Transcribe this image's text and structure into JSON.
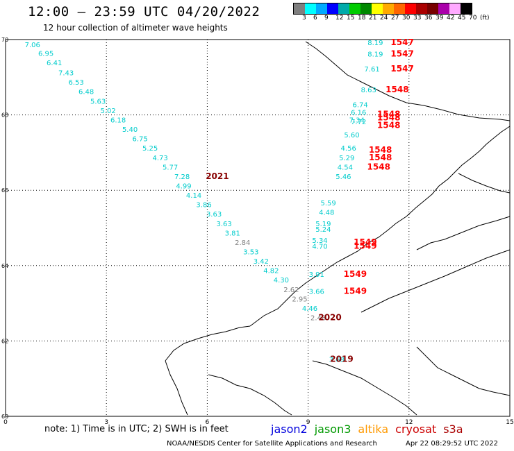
{
  "title": "12:00 — 23:59 UTC 04/20/2022",
  "subtitle": "12 hour collection of altimeter wave heights",
  "legend": {
    "colors": [
      "#7f7f7f",
      "#00ffff",
      "#00aaff",
      "#0000ff",
      "#00aaaa",
      "#00cc00",
      "#008800",
      "#ffff00",
      "#ffaa00",
      "#ff6600",
      "#ff0000",
      "#aa0000",
      "#770000",
      "#aa00aa",
      "#ffaaff",
      "#000000"
    ],
    "labels": [
      "3",
      "6",
      "9",
      "12",
      "15",
      "18",
      "21",
      "24",
      "27",
      "30",
      "33",
      "36",
      "39",
      "42",
      "45",
      "70",
      "(ft)"
    ]
  },
  "axes": {
    "lon_ticks": [
      "0",
      "3",
      "6",
      "9",
      "12",
      "15"
    ],
    "lat_ticks": [
      "70",
      "68",
      "66",
      "64",
      "62",
      "60"
    ]
  },
  "chart_data": {
    "type": "scatter",
    "x_range": [
      0,
      15
    ],
    "y_range": [
      60,
      70
    ],
    "grid": true,
    "points": [
      {
        "lon": 0.8,
        "lat": 69.8,
        "v": "7.06",
        "c": "#00cccc"
      },
      {
        "lon": 1.2,
        "lat": 69.57,
        "v": "6.95",
        "c": "#00cccc"
      },
      {
        "lon": 1.45,
        "lat": 69.32,
        "v": "6.41",
        "c": "#00cccc"
      },
      {
        "lon": 1.8,
        "lat": 69.05,
        "v": "7.43",
        "c": "#00cccc"
      },
      {
        "lon": 2.1,
        "lat": 68.8,
        "v": "6.53",
        "c": "#00cccc"
      },
      {
        "lon": 2.4,
        "lat": 68.55,
        "v": "6.48",
        "c": "#00cccc"
      },
      {
        "lon": 2.75,
        "lat": 68.3,
        "v": "5.63",
        "c": "#00cccc"
      },
      {
        "lon": 3.05,
        "lat": 68.05,
        "v": "5.02",
        "c": "#00cccc"
      },
      {
        "lon": 3.35,
        "lat": 67.8,
        "v": "6.18",
        "c": "#00cccc"
      },
      {
        "lon": 3.7,
        "lat": 67.55,
        "v": "5.40",
        "c": "#00cccc"
      },
      {
        "lon": 4.0,
        "lat": 67.3,
        "v": "6.75",
        "c": "#00cccc"
      },
      {
        "lon": 4.3,
        "lat": 67.05,
        "v": "5.25",
        "c": "#00cccc"
      },
      {
        "lon": 4.6,
        "lat": 66.8,
        "v": "4.73",
        "c": "#00cccc"
      },
      {
        "lon": 4.9,
        "lat": 66.55,
        "v": "5.77",
        "c": "#00cccc"
      },
      {
        "lon": 5.25,
        "lat": 66.3,
        "v": "7.28",
        "c": "#00cccc"
      },
      {
        "lon": 5.3,
        "lat": 66.05,
        "v": "4.99",
        "c": "#00cccc"
      },
      {
        "lon": 5.6,
        "lat": 65.8,
        "v": "4.14",
        "c": "#00cccc"
      },
      {
        "lon": 5.9,
        "lat": 65.55,
        "v": "3.86",
        "c": "#00cccc"
      },
      {
        "lon": 6.2,
        "lat": 65.3,
        "v": "3.63",
        "c": "#00cccc"
      },
      {
        "lon": 6.5,
        "lat": 65.05,
        "v": "3.63",
        "c": "#00cccc"
      },
      {
        "lon": 6.75,
        "lat": 64.8,
        "v": "3.81",
        "c": "#00cccc"
      },
      {
        "lon": 7.05,
        "lat": 64.55,
        "v": "2.84",
        "c": "#808080"
      },
      {
        "lon": 7.3,
        "lat": 64.3,
        "v": "3.53",
        "c": "#00cccc"
      },
      {
        "lon": 7.6,
        "lat": 64.05,
        "v": "3.42",
        "c": "#00cccc"
      },
      {
        "lon": 7.9,
        "lat": 63.8,
        "v": "4.82",
        "c": "#00cccc"
      },
      {
        "lon": 8.2,
        "lat": 63.55,
        "v": "4.30",
        "c": "#00cccc"
      },
      {
        "lon": 8.5,
        "lat": 63.3,
        "v": "2.62",
        "c": "#808080"
      },
      {
        "lon": 8.75,
        "lat": 63.05,
        "v": "2.95",
        "c": "#808080"
      },
      {
        "lon": 9.05,
        "lat": 62.8,
        "v": "4.46",
        "c": "#00cccc"
      },
      {
        "lon": 9.3,
        "lat": 62.55,
        "v": "2.48",
        "c": "#808080"
      },
      {
        "lon": 9.85,
        "lat": 61.45,
        "v": "3.68",
        "c": "#00cccc"
      },
      {
        "lon": 11.0,
        "lat": 69.85,
        "v": "8.19",
        "c": "#00cccc"
      },
      {
        "lon": 11.0,
        "lat": 69.55,
        "v": "8.19",
        "c": "#00cccc"
      },
      {
        "lon": 10.9,
        "lat": 69.15,
        "v": "7.61",
        "c": "#00cccc"
      },
      {
        "lon": 10.8,
        "lat": 68.6,
        "v": "8.63",
        "c": "#00cccc"
      },
      {
        "lon": 10.55,
        "lat": 68.2,
        "v": "6.74",
        "c": "#00cccc"
      },
      {
        "lon": 10.5,
        "lat": 68.0,
        "v": "6.16",
        "c": "#00cccc"
      },
      {
        "lon": 10.45,
        "lat": 67.8,
        "v": "7.34",
        "c": "#00cccc"
      },
      {
        "lon": 10.5,
        "lat": 67.75,
        "v": "7.72",
        "c": "#00cccc"
      },
      {
        "lon": 10.3,
        "lat": 67.4,
        "v": "5.60",
        "c": "#00cccc"
      },
      {
        "lon": 10.2,
        "lat": 67.05,
        "v": "4.56",
        "c": "#00cccc"
      },
      {
        "lon": 10.15,
        "lat": 66.8,
        "v": "5.29",
        "c": "#00cccc"
      },
      {
        "lon": 10.1,
        "lat": 66.55,
        "v": "4.54",
        "c": "#00cccc"
      },
      {
        "lon": 10.05,
        "lat": 66.3,
        "v": "5.46",
        "c": "#00cccc"
      },
      {
        "lon": 9.6,
        "lat": 65.6,
        "v": "5.59",
        "c": "#00cccc"
      },
      {
        "lon": 9.55,
        "lat": 65.35,
        "v": "4.48",
        "c": "#00cccc"
      },
      {
        "lon": 9.45,
        "lat": 65.05,
        "v": "5.19",
        "c": "#00cccc"
      },
      {
        "lon": 9.45,
        "lat": 64.9,
        "v": "5.24",
        "c": "#00cccc"
      },
      {
        "lon": 9.35,
        "lat": 64.6,
        "v": "5.34",
        "c": "#00cccc"
      },
      {
        "lon": 9.35,
        "lat": 64.45,
        "v": "4.70",
        "c": "#00cccc"
      },
      {
        "lon": 9.25,
        "lat": 63.7,
        "v": "3.91",
        "c": "#00cccc"
      },
      {
        "lon": 9.25,
        "lat": 63.25,
        "v": "3.66",
        "c": "#00cccc"
      }
    ],
    "labels": [
      {
        "lon": 11.8,
        "lat": 69.85,
        "t": "1547",
        "c": "#ff0000"
      },
      {
        "lon": 11.8,
        "lat": 69.55,
        "t": "1547",
        "c": "#ff0000"
      },
      {
        "lon": 11.8,
        "lat": 69.15,
        "t": "1547",
        "c": "#ff0000"
      },
      {
        "lon": 11.65,
        "lat": 68.6,
        "t": "1548",
        "c": "#ff0000"
      },
      {
        "lon": 11.4,
        "lat": 67.95,
        "t": "1548",
        "c": "#ff0000"
      },
      {
        "lon": 11.4,
        "lat": 67.85,
        "t": "1548",
        "c": "#ff0000"
      },
      {
        "lon": 11.4,
        "lat": 67.65,
        "t": "1548",
        "c": "#ff0000"
      },
      {
        "lon": 11.15,
        "lat": 67.0,
        "t": "1548",
        "c": "#ff0000"
      },
      {
        "lon": 11.15,
        "lat": 66.8,
        "t": "1548",
        "c": "#ff0000"
      },
      {
        "lon": 11.1,
        "lat": 66.55,
        "t": "1548",
        "c": "#ff0000"
      },
      {
        "lon": 10.7,
        "lat": 64.55,
        "t": "1549",
        "c": "#ff0000"
      },
      {
        "lon": 10.7,
        "lat": 64.45,
        "t": "1549",
        "c": "#ff0000"
      },
      {
        "lon": 10.4,
        "lat": 63.7,
        "t": "1549",
        "c": "#ff0000"
      },
      {
        "lon": 10.4,
        "lat": 63.25,
        "t": "1549",
        "c": "#ff0000"
      },
      {
        "lon": 6.3,
        "lat": 66.3,
        "t": "2021",
        "c": "#880000"
      },
      {
        "lon": 9.65,
        "lat": 62.55,
        "t": "2020",
        "c": "#880000"
      },
      {
        "lon": 10.0,
        "lat": 61.45,
        "t": "2019",
        "c": "#880000"
      }
    ]
  },
  "footer": {
    "note": "note: 1) Time is in UTC; 2) SWH is in feet",
    "satellites": [
      {
        "name": "jason2",
        "color": "#0000dd"
      },
      {
        "name": "jason3",
        "color": "#009900"
      },
      {
        "name": "altika",
        "color": "#ff9900"
      },
      {
        "name": "cryosat",
        "color": "#cc0000"
      },
      {
        "name": "s3a",
        "color": "#aa0000"
      }
    ],
    "credit": "NOAA/NESDIS Center for Satellite Applications and Research",
    "timestamp": "Apr 22 08:29:52 UTC 2022"
  }
}
